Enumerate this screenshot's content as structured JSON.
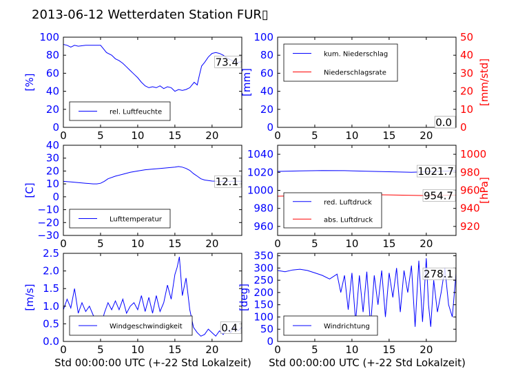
{
  "figure_title": "2013-06-12 Wetterdaten Station FUR▯",
  "colors": {
    "primary": "#0000ff",
    "secondary": "#ff0000",
    "axes": "#000000"
  },
  "chart_data": [
    {
      "type": "line",
      "id": "humidity",
      "ylabel": "[%]",
      "xlim": [
        0,
        24
      ],
      "ylim": [
        0,
        100
      ],
      "yticks": [
        "0",
        "20",
        "40",
        "60",
        "80",
        "100"
      ],
      "xticks": [
        "0",
        "5",
        "10",
        "15",
        "20"
      ],
      "annotation": "73.4",
      "legend_placement": "lower-left",
      "series": [
        {
          "name": "rel. Luftfeuchte",
          "color": "#0000ff",
          "axis": "left",
          "x": [
            0,
            0.5,
            1,
            1.5,
            2,
            3,
            4,
            5,
            5.3,
            5.8,
            6.5,
            7,
            7.5,
            8,
            8.5,
            9,
            9.5,
            10,
            10.5,
            11,
            11.5,
            12,
            12.5,
            13,
            13.5,
            14,
            14.5,
            15,
            15.5,
            16,
            16.5,
            17,
            17.3,
            17.6,
            18,
            18.3,
            18.6,
            19,
            19.5,
            20,
            20.5,
            21,
            21.5,
            22,
            22.5,
            23,
            23.5,
            24
          ],
          "y": [
            92,
            91,
            89,
            91,
            90,
            91,
            91,
            91,
            88,
            83,
            80,
            76,
            74,
            71,
            67,
            63,
            59,
            55,
            50,
            46,
            44,
            45,
            44,
            46,
            43,
            45,
            44,
            40,
            42,
            41,
            42,
            44,
            47,
            50,
            47,
            58,
            68,
            72,
            78,
            82,
            83,
            82,
            80,
            77,
            75,
            73,
            72,
            73
          ]
        }
      ]
    },
    {
      "type": "line",
      "id": "precipitation",
      "ylabel": "[mm]",
      "ylabel_right": "[mm/std]",
      "xlim": [
        0,
        24
      ],
      "ylim": [
        0,
        100
      ],
      "ylim_right": [
        0,
        50
      ],
      "yticks": [
        "0",
        "20",
        "40",
        "60",
        "80",
        "100"
      ],
      "yticks_right": [
        "0",
        "10",
        "20",
        "30",
        "40",
        "50"
      ],
      "xticks": [
        "0",
        "5",
        "10",
        "15",
        "20"
      ],
      "annotation": "0.0",
      "annotation2": "0.0",
      "legend_placement": "upper-left",
      "series": [
        {
          "name": "kum. Niederschlag",
          "color": "#0000ff",
          "axis": "left",
          "x": [
            0,
            24
          ],
          "y": [
            0,
            0
          ]
        },
        {
          "name": "Niederschlagsrate",
          "color": "#ff0000",
          "axis": "right",
          "x": [
            0,
            24
          ],
          "y": [
            0,
            0
          ]
        }
      ]
    },
    {
      "type": "line",
      "id": "temperature",
      "ylabel": "[C]",
      "xlim": [
        0,
        24
      ],
      "ylim": [
        -30,
        40
      ],
      "yticks": [
        "−30",
        "−20",
        "−10",
        "0",
        "10",
        "20",
        "30",
        "40"
      ],
      "xticks": [
        "0",
        "5",
        "10",
        "15",
        "20"
      ],
      "annotation": "12.1",
      "legend_placement": "lower-left",
      "series": [
        {
          "name": "Lufttemperatur",
          "color": "#0000ff",
          "axis": "left",
          "x": [
            0,
            1,
            2,
            3,
            4,
            4.5,
            5,
            5.5,
            6,
            7,
            8,
            9,
            10,
            11,
            12,
            13,
            14,
            15,
            15.5,
            16,
            16.5,
            17,
            17.5,
            18,
            18.5,
            19,
            20,
            21,
            22,
            23,
            24
          ],
          "y": [
            12,
            11.5,
            11,
            10.5,
            10,
            10,
            10.5,
            12,
            14,
            16,
            17.5,
            19,
            20,
            21,
            21.5,
            22,
            22.5,
            23,
            23.5,
            23,
            22,
            20.5,
            18,
            16,
            14,
            13,
            12.2,
            12,
            12,
            12.1,
            12.1
          ]
        }
      ]
    },
    {
      "type": "line",
      "id": "pressure",
      "ylabel": "",
      "ylabel_right": "[hPa]",
      "xlim": [
        0,
        24
      ],
      "ylim": [
        950,
        1050
      ],
      "ylim_right": [
        910,
        1010
      ],
      "yticks": [
        "960",
        "980",
        "1000",
        "1020",
        "1040"
      ],
      "yticks_right": [
        "920",
        "940",
        "960",
        "980",
        "1000"
      ],
      "xticks": [
        "0",
        "5",
        "10",
        "15",
        "20"
      ],
      "annotation": "1021.7",
      "annotation2": "954.7",
      "legend_placement": "lower-left",
      "series": [
        {
          "name": "red. Luftdruck",
          "color": "#0000ff",
          "axis": "left",
          "x": [
            0,
            3,
            6,
            9,
            12,
            15,
            18,
            20,
            22,
            24
          ],
          "y": [
            1021,
            1021.5,
            1022,
            1021.8,
            1021.2,
            1020.6,
            1020,
            1020.6,
            1021.2,
            1021.7
          ]
        },
        {
          "name": "abs. Luftdruck",
          "color": "#ff0000",
          "axis": "right",
          "x": [
            0,
            3,
            6,
            9,
            12,
            15,
            18,
            20,
            22,
            24
          ],
          "y": [
            953.5,
            954,
            954.5,
            955,
            955.2,
            955,
            954.5,
            954.2,
            954.4,
            954.7
          ]
        }
      ]
    },
    {
      "type": "line",
      "id": "windspeed",
      "ylabel": "[m/s]",
      "xlim": [
        0,
        24
      ],
      "ylim": [
        0,
        2.5
      ],
      "yticks": [
        "0.0",
        "0.5",
        "1.0",
        "1.5",
        "2.0",
        "2.5"
      ],
      "xticks": [
        "0",
        "5",
        "10",
        "15",
        "20"
      ],
      "annotation": "0.4",
      "legend_placement": "lower-left",
      "series": [
        {
          "name": "Windgeschwindigkeit",
          "color": "#0000ff",
          "axis": "left",
          "x": [
            0,
            0.5,
            1,
            1.5,
            2,
            2.5,
            3,
            3.5,
            4,
            4.5,
            5,
            5.5,
            6,
            6.5,
            7,
            7.5,
            8,
            8.5,
            9,
            9.5,
            10,
            10.5,
            11,
            11.5,
            12,
            12.5,
            13,
            13.5,
            14,
            14.5,
            15,
            15.3,
            15.6,
            16,
            16.5,
            17,
            17.5,
            18,
            18.5,
            19,
            19.5,
            20,
            20.5,
            21,
            21.5,
            22,
            22.5,
            23,
            23.5,
            24
          ],
          "y": [
            0.9,
            1.2,
            0.95,
            1.5,
            0.8,
            1.1,
            0.85,
            1.0,
            0.75,
            0.55,
            0.4,
            0.8,
            1.1,
            0.9,
            1.15,
            0.9,
            1.2,
            0.8,
            1.0,
            1.1,
            0.9,
            1.3,
            0.85,
            1.25,
            0.8,
            1.3,
            0.85,
            1.1,
            1.6,
            1.2,
            1.9,
            2.1,
            2.4,
            1.3,
            1.8,
            0.9,
            0.4,
            0.25,
            0.15,
            0.2,
            0.35,
            0.25,
            0.15,
            0.3,
            0.2,
            0.35,
            0.25,
            0.4,
            0.3,
            0.4
          ]
        }
      ]
    },
    {
      "type": "line",
      "id": "winddirection",
      "ylabel": "[deg]",
      "xlim": [
        0,
        24
      ],
      "ylim": [
        0,
        360
      ],
      "yticks": [
        "0",
        "50",
        "100",
        "150",
        "200",
        "250",
        "300",
        "350"
      ],
      "xticks": [
        "0",
        "5",
        "10",
        "15",
        "20"
      ],
      "annotation": "278.1",
      "legend_placement": "lower-left",
      "series": [
        {
          "name": "Windrichtung",
          "color": "#0000ff",
          "axis": "left",
          "x": [
            0,
            1,
            2,
            3,
            4,
            5,
            6,
            7,
            8,
            8.5,
            9,
            9.5,
            10,
            10.5,
            11,
            11.5,
            12,
            12.5,
            13,
            13.5,
            14,
            14.5,
            15,
            15.5,
            16,
            16.5,
            17,
            17.5,
            18,
            18.5,
            19,
            19.5,
            20,
            20.3,
            20.6,
            21,
            21.5,
            22,
            22.5,
            23,
            23.5,
            24
          ],
          "y": [
            290,
            285,
            292,
            295,
            290,
            280,
            270,
            255,
            275,
            200,
            270,
            130,
            280,
            80,
            270,
            120,
            285,
            60,
            270,
            150,
            290,
            100,
            280,
            180,
            300,
            120,
            290,
            200,
            310,
            60,
            330,
            80,
            340,
            150,
            60,
            250,
            120,
            200,
            300,
            150,
            100,
            278
          ]
        }
      ]
    }
  ],
  "xlabel": "Std 00:00:00 UTC (+-22 Std Lokalzeit)"
}
